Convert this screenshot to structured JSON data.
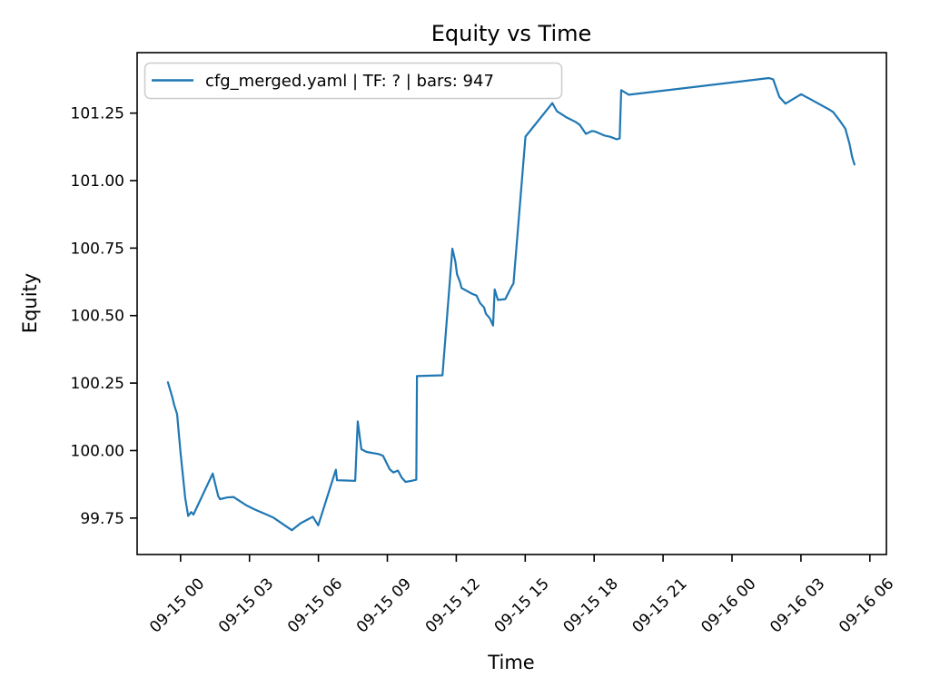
{
  "figure": {
    "background": "#ffffff",
    "plot_border_color": "#000000"
  },
  "chart_data": {
    "type": "line",
    "title": "Equity vs Time",
    "xlabel": "Time",
    "ylabel": "Equity",
    "grid": false,
    "legend": {
      "position": "upper left",
      "entries": [
        {
          "label": "cfg_merged.yaml | TF: ? | bars: 947",
          "color": "#1f77b4"
        }
      ]
    },
    "axes": {
      "x_unit": "hours relative to 09-15 00",
      "xlim_hours": [
        -1.89,
        30.72
      ],
      "ylim": [
        99.615,
        101.474
      ],
      "x_ticks_hours": [
        0,
        3,
        6,
        9,
        12,
        15,
        18,
        21,
        24,
        27,
        30
      ],
      "x_tick_labels": [
        "09-15 00",
        "09-15 03",
        "09-15 06",
        "09-15 09",
        "09-15 12",
        "09-15 15",
        "09-15 18",
        "09-15 21",
        "09-16 00",
        "09-16 03",
        "09-16 06"
      ],
      "x_tick_rotation_deg": 45,
      "y_ticks": [
        99.75,
        100.0,
        100.25,
        100.5,
        100.75,
        101.0,
        101.25
      ],
      "y_tick_labels": [
        "99.75",
        "100.00",
        "100.25",
        "100.50",
        "100.75",
        "101.00",
        "101.25"
      ]
    },
    "series": [
      {
        "name": "cfg_merged.yaml | TF: ? | bars: 947",
        "color": "#1f77b4",
        "line_width": 2.2,
        "points_t_hours_value": [
          [
            -0.55,
            100.253
          ],
          [
            -0.36,
            100.198
          ],
          [
            -0.28,
            100.17
          ],
          [
            -0.15,
            100.135
          ],
          [
            0.0,
            99.992
          ],
          [
            0.2,
            99.825
          ],
          [
            0.33,
            99.758
          ],
          [
            0.46,
            99.772
          ],
          [
            0.56,
            99.763
          ],
          [
            1.4,
            99.915
          ],
          [
            1.64,
            99.831
          ],
          [
            1.72,
            99.82
          ],
          [
            2.02,
            99.826
          ],
          [
            2.3,
            99.828
          ],
          [
            2.85,
            99.798
          ],
          [
            3.25,
            99.781
          ],
          [
            3.77,
            99.762
          ],
          [
            4.03,
            99.752
          ],
          [
            4.84,
            99.705
          ],
          [
            5.23,
            99.731
          ],
          [
            5.76,
            99.755
          ],
          [
            5.99,
            99.723
          ],
          [
            6.76,
            99.929
          ],
          [
            6.81,
            99.89
          ],
          [
            7.6,
            99.888
          ],
          [
            7.71,
            100.108
          ],
          [
            7.87,
            100.005
          ],
          [
            8.1,
            99.995
          ],
          [
            8.62,
            99.987
          ],
          [
            8.81,
            99.981
          ],
          [
            9.1,
            99.931
          ],
          [
            9.26,
            99.919
          ],
          [
            9.46,
            99.926
          ],
          [
            9.64,
            99.898
          ],
          [
            9.79,
            99.884
          ],
          [
            10.05,
            99.888
          ],
          [
            10.26,
            99.892
          ],
          [
            10.29,
            100.276
          ],
          [
            11.4,
            100.279
          ],
          [
            11.83,
            100.748
          ],
          [
            11.96,
            100.7
          ],
          [
            12.03,
            100.653
          ],
          [
            12.16,
            100.625
          ],
          [
            12.23,
            100.602
          ],
          [
            12.7,
            100.58
          ],
          [
            12.88,
            100.574
          ],
          [
            13.03,
            100.547
          ],
          [
            13.21,
            100.53
          ],
          [
            13.29,
            100.507
          ],
          [
            13.46,
            100.49
          ],
          [
            13.6,
            100.463
          ],
          [
            13.67,
            100.597
          ],
          [
            13.81,
            100.558
          ],
          [
            14.13,
            100.561
          ],
          [
            14.41,
            100.608
          ],
          [
            14.49,
            100.619
          ],
          [
            15.01,
            101.163
          ],
          [
            16.18,
            101.287
          ],
          [
            16.38,
            101.257
          ],
          [
            16.58,
            101.246
          ],
          [
            16.78,
            101.235
          ],
          [
            17.18,
            101.218
          ],
          [
            17.38,
            101.206
          ],
          [
            17.64,
            101.173
          ],
          [
            17.91,
            101.184
          ],
          [
            18.04,
            101.182
          ],
          [
            18.44,
            101.167
          ],
          [
            18.71,
            101.162
          ],
          [
            18.98,
            101.153
          ],
          [
            19.11,
            101.156
          ],
          [
            19.18,
            101.335
          ],
          [
            19.51,
            101.318
          ],
          [
            25.61,
            101.38
          ],
          [
            25.79,
            101.375
          ],
          [
            26.06,
            101.31
          ],
          [
            26.33,
            101.285
          ],
          [
            27.01,
            101.32
          ],
          [
            27.51,
            101.297
          ],
          [
            28.26,
            101.262
          ],
          [
            28.41,
            101.253
          ],
          [
            28.71,
            101.22
          ],
          [
            28.93,
            101.193
          ],
          [
            29.11,
            101.137
          ],
          [
            29.23,
            101.087
          ],
          [
            29.33,
            101.06
          ]
        ]
      }
    ]
  }
}
